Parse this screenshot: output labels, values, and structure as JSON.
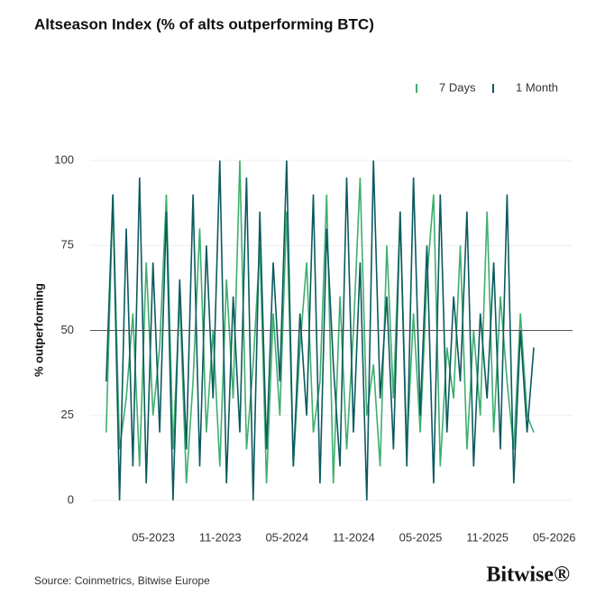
{
  "chart_data": {
    "type": "line",
    "title": "Altseason Index (% of alts outperforming BTC)",
    "y_label": "% outperforming",
    "source": "Source: Coinmetrics, Bitwise Europe",
    "logo": "Bitwise®",
    "x": [
      2022.98,
      2023.03,
      2023.08,
      2023.13,
      2023.18,
      2023.23,
      2023.28,
      2023.33,
      2023.38,
      2023.43,
      2023.48,
      2023.53,
      2023.58,
      2023.63,
      2023.68,
      2023.73,
      2023.78,
      2023.83,
      2023.88,
      2023.93,
      2023.98,
      2024.03,
      2024.08,
      2024.13,
      2024.18,
      2024.23,
      2024.28,
      2024.33,
      2024.38,
      2024.43,
      2024.48,
      2024.53,
      2024.58,
      2024.63,
      2024.68,
      2024.73,
      2024.78,
      2024.83,
      2024.88,
      2024.93,
      2024.98,
      2025.03,
      2025.08,
      2025.13,
      2025.18,
      2025.23,
      2025.28,
      2025.33,
      2025.38,
      2025.43,
      2025.48,
      2025.53,
      2025.58,
      2025.63,
      2025.68,
      2025.73,
      2025.78,
      2025.83,
      2025.88,
      2025.93,
      2025.98,
      2026.03,
      2026.08,
      2026.13,
      2026.18
    ],
    "series": [
      {
        "name": "7 Days",
        "color": "#3fae6e",
        "values": [
          20,
          90,
          15,
          30,
          55,
          10,
          70,
          25,
          45,
          90,
          15,
          60,
          5,
          35,
          80,
          20,
          50,
          10,
          65,
          30,
          100,
          15,
          40,
          75,
          5,
          55,
          25,
          85,
          10,
          45,
          70,
          20,
          35,
          90,
          5,
          60,
          15,
          50,
          95,
          25,
          40,
          10,
          75,
          30,
          85,
          15,
          55,
          20,
          65,
          90,
          10,
          45,
          30,
          75,
          15,
          50,
          25,
          85,
          20,
          60,
          35,
          15,
          55,
          25,
          20
        ]
      },
      {
        "name": "1 Month",
        "color": "#0b5a60",
        "values": [
          35,
          90,
          0,
          80,
          10,
          95,
          5,
          70,
          20,
          85,
          0,
          65,
          15,
          90,
          10,
          75,
          30,
          100,
          5,
          60,
          20,
          95,
          0,
          85,
          15,
          70,
          35,
          100,
          10,
          55,
          25,
          90,
          5,
          80,
          40,
          10,
          95,
          20,
          70,
          0,
          100,
          30,
          60,
          15,
          85,
          10,
          95,
          25,
          75,
          5,
          90,
          20,
          60,
          35,
          85,
          10,
          55,
          30,
          70,
          15,
          90,
          5,
          50,
          20,
          45
        ]
      }
    ],
    "xlim": [
      2022.86,
      2026.47
    ],
    "xticks": [
      {
        "value": 2023.333,
        "label": "05-2023"
      },
      {
        "value": 2023.833,
        "label": "11-2023"
      },
      {
        "value": 2024.333,
        "label": "05-2024"
      },
      {
        "value": 2024.833,
        "label": "11-2024"
      },
      {
        "value": 2025.333,
        "label": "05-2025"
      },
      {
        "value": 2025.833,
        "label": "11-2025"
      },
      {
        "value": 2026.333,
        "label": "05-2026"
      }
    ],
    "ylim": [
      0,
      100
    ],
    "yticks": [
      0,
      25,
      50,
      75,
      100
    ],
    "threshold": 50,
    "grid": true,
    "legend": "top-right"
  }
}
